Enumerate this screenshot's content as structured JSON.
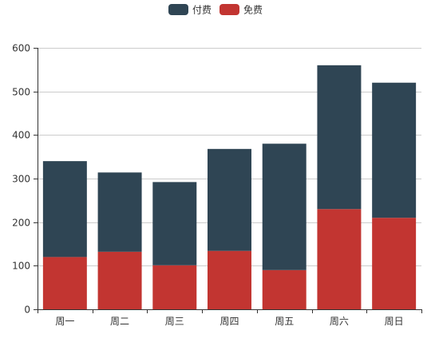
{
  "chart_data": {
    "type": "bar",
    "stacked": true,
    "categories": [
      "周一",
      "周二",
      "周三",
      "周四",
      "周五",
      "周六",
      "周日"
    ],
    "series": [
      {
        "name": "免费",
        "color": "#c23531",
        "values": [
          120,
          132,
          101,
          134,
          90,
          230,
          210
        ]
      },
      {
        "name": "付费",
        "color": "#2f4554",
        "values": [
          220,
          182,
          191,
          234,
          290,
          330,
          310
        ]
      }
    ],
    "legend_order": [
      "付费",
      "免费"
    ],
    "legend_position": "top-center",
    "ylim": [
      0,
      600
    ],
    "yticks": [
      0,
      100,
      200,
      300,
      400,
      500,
      600
    ],
    "grid": "horizontal",
    "title": "",
    "xlabel": "",
    "ylabel": ""
  }
}
